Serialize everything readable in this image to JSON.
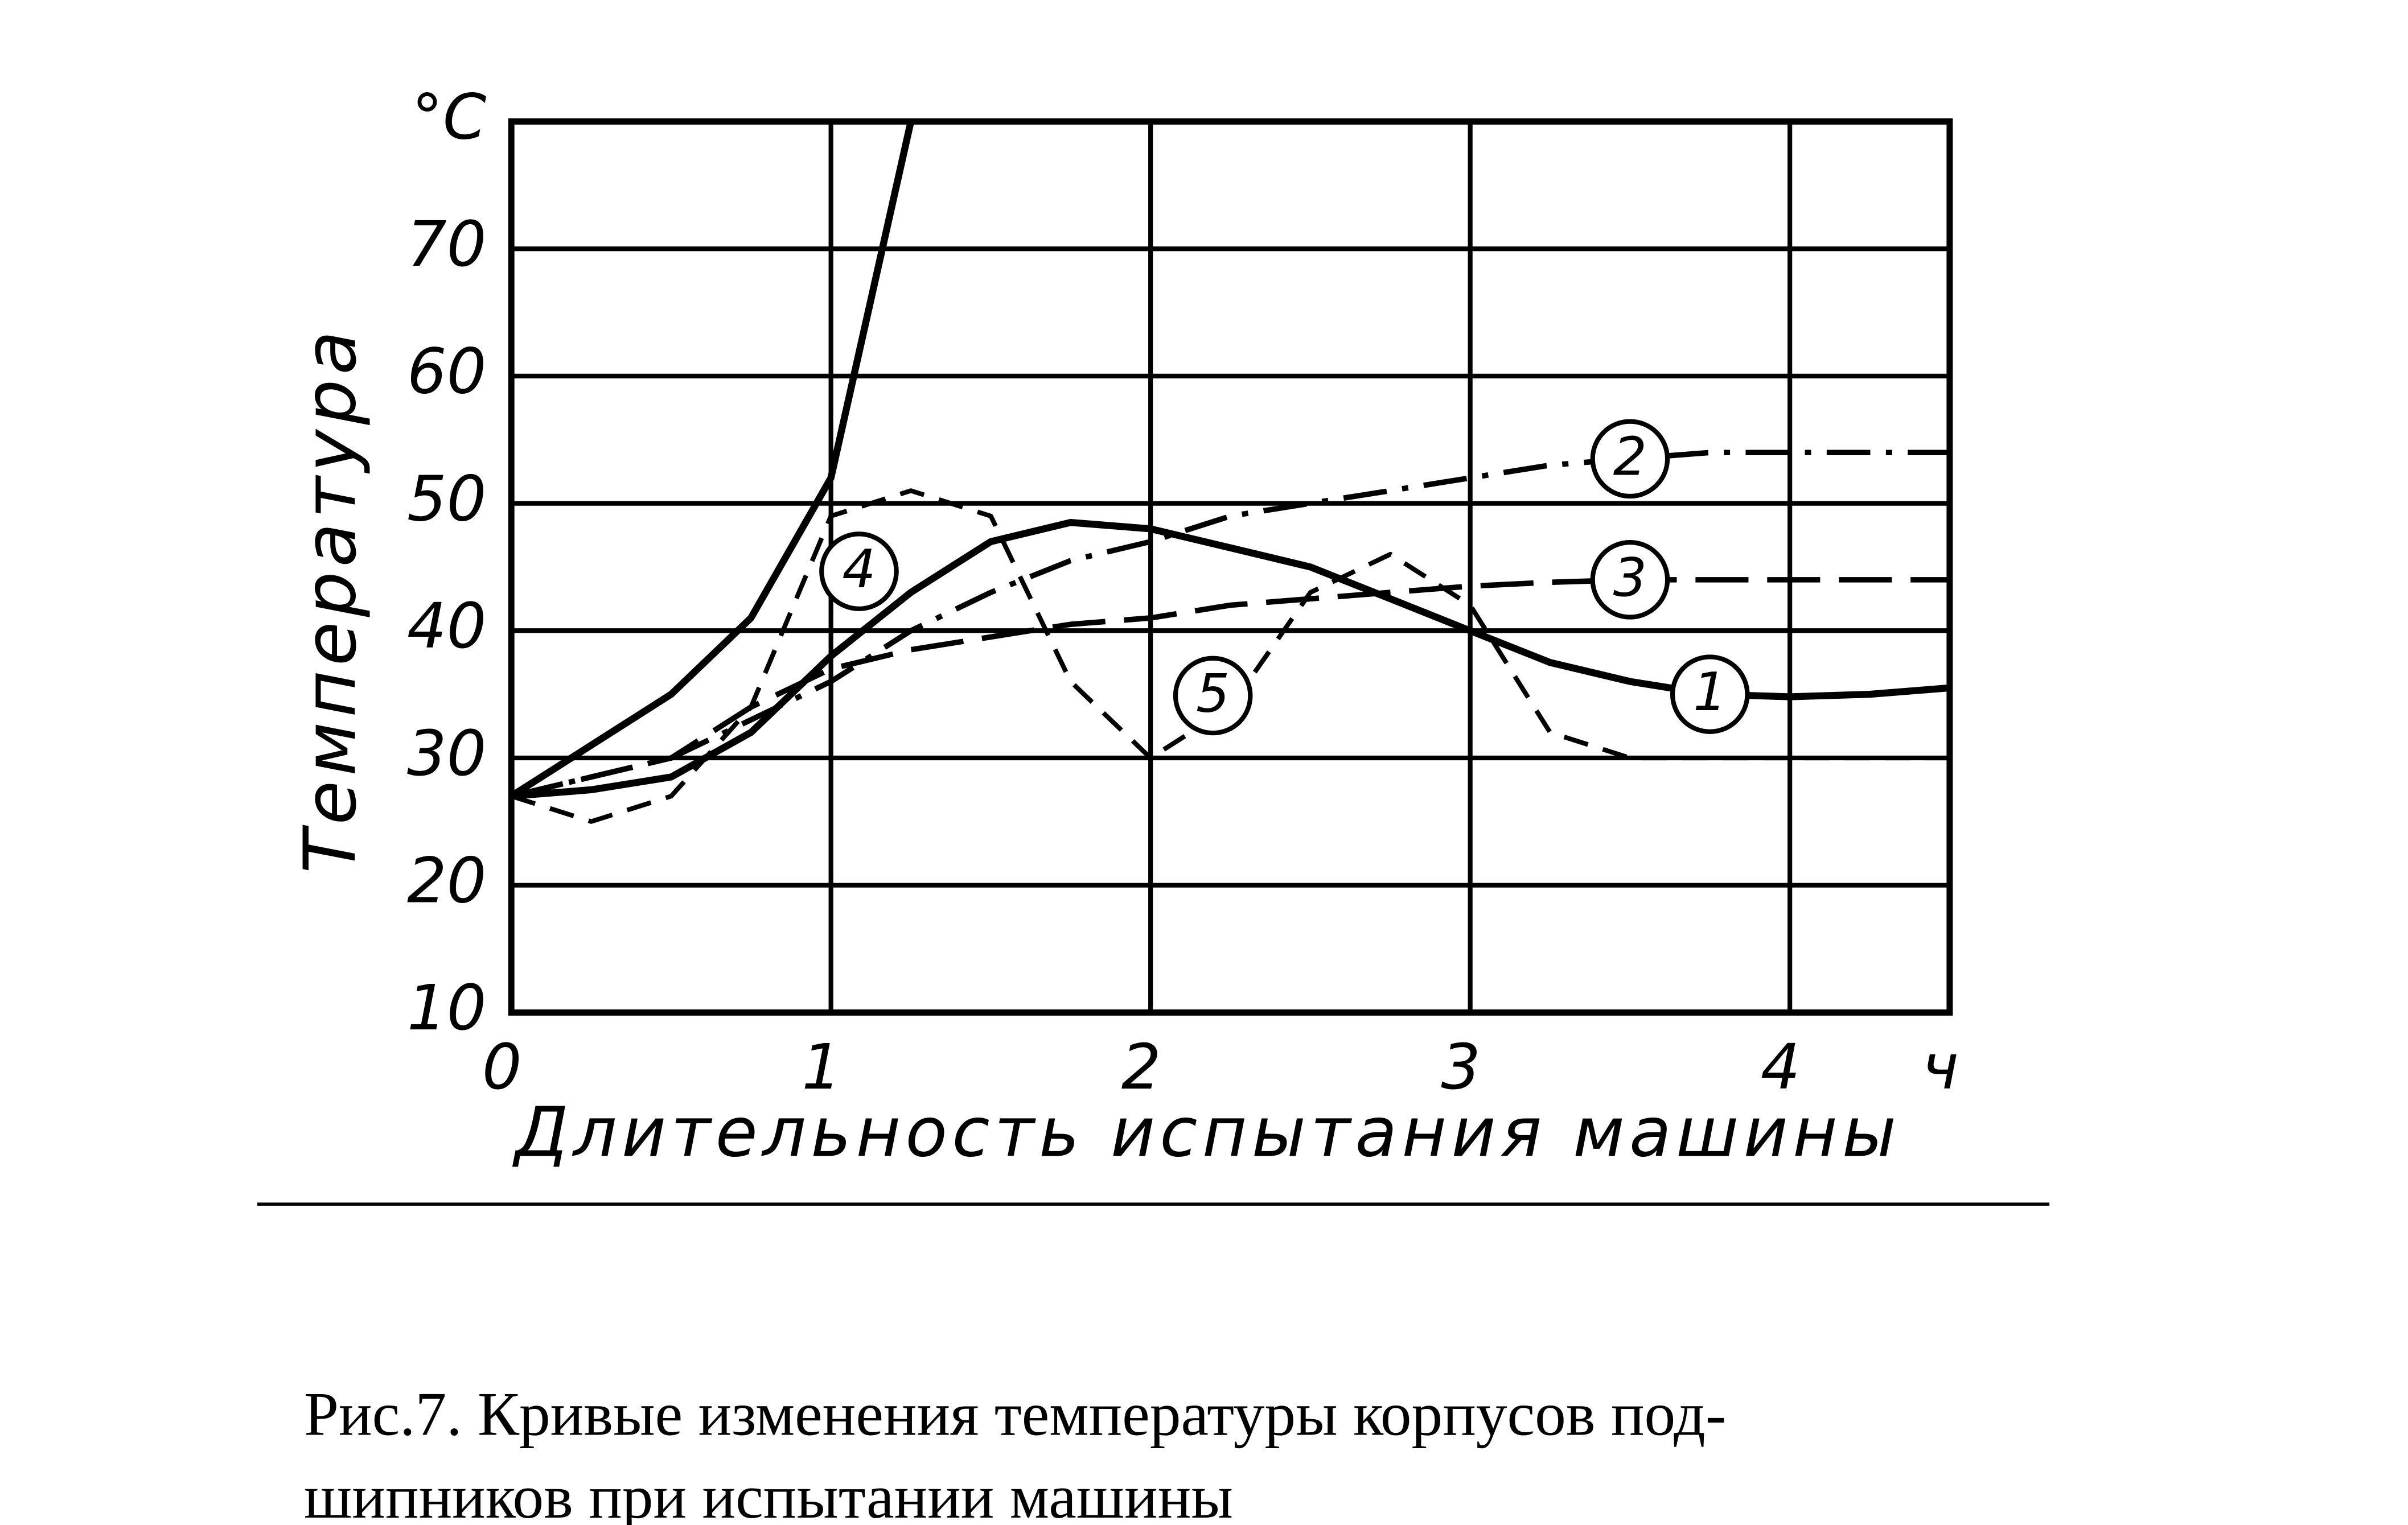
{
  "chart_data": {
    "type": "line",
    "y_label": "Температура",
    "x_label": "Длительность испытания машины",
    "caption": [
      "Рис.7. Кривые изменения температуры корпусов под-",
      "шипников при испытании машины"
    ],
    "x": [
      0,
      0.25,
      0.5,
      0.75,
      1,
      1.25,
      1.5,
      1.75,
      2,
      2.25,
      2.5,
      2.75,
      3,
      3.25,
      3.5,
      3.75,
      4,
      4.25,
      4.5
    ],
    "xlim": [
      0,
      4.5
    ],
    "xticks": [
      0,
      1,
      2,
      3,
      4,
      {
        "value": 4.5,
        "label": "ч"
      }
    ],
    "ylim": [
      10,
      80
    ],
    "yticks": [
      10,
      20,
      30,
      40,
      50,
      60,
      70,
      {
        "value": 80,
        "label": "°C"
      }
    ],
    "grid": true,
    "series": [
      {
        "name": "1",
        "color": "#000000",
        "style": "solid",
        "values": [
          27,
          27.5,
          28.5,
          32,
          38,
          43,
          47,
          48.5,
          48,
          46.5,
          45,
          42.5,
          40,
          37.5,
          36,
          35,
          34.8,
          35,
          35.5
        ]
      },
      {
        "name": "2",
        "color": "#000000",
        "style": "dash-dot",
        "values": [
          27,
          28.5,
          30,
          33,
          36,
          40,
          43,
          45.5,
          47,
          49,
          50,
          51,
          52,
          53,
          53.5,
          54,
          54,
          54,
          54
        ]
      },
      {
        "name": "3",
        "color": "#000000",
        "style": "long-dash",
        "values": [
          27,
          28.5,
          30,
          34,
          37,
          38.5,
          39.5,
          40.5,
          41,
          42,
          42.5,
          43,
          43.5,
          43.8,
          44,
          44,
          44,
          44,
          44
        ]
      },
      {
        "name": "4",
        "color": "#000000",
        "style": "solid",
        "values": [
          27,
          31,
          35,
          41,
          52,
          80,
          null,
          null,
          null,
          null,
          null,
          null,
          null,
          null,
          null,
          null,
          null,
          null,
          null
        ]
      },
      {
        "name": "5",
        "color": "#000000",
        "style": "dash",
        "values": [
          27,
          25,
          27,
          34,
          49,
          51,
          49,
          36,
          30,
          34,
          43,
          46,
          42,
          32,
          30,
          30,
          30,
          30,
          30
        ]
      }
    ]
  }
}
